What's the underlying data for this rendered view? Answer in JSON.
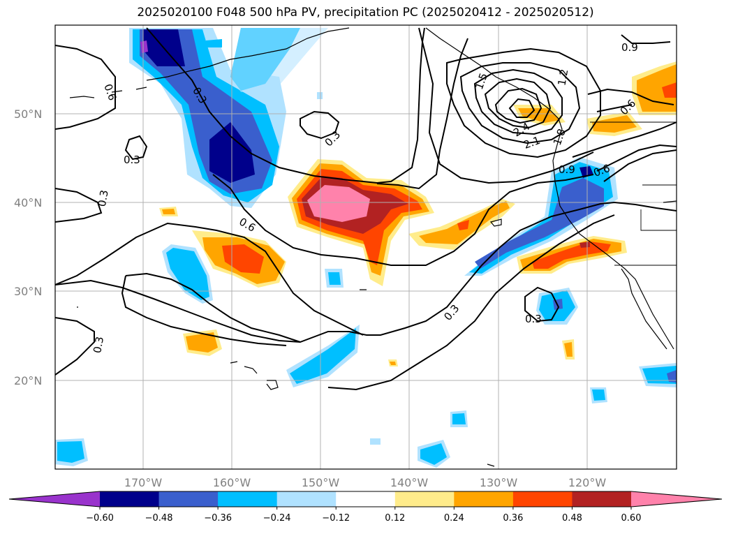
{
  "title": "2025020100 F048 500 hPa PV, precipitation PC (2025020412 - 2025020512)",
  "lat_labels": [
    "50°N",
    "40°N",
    "30°N",
    "20°N"
  ],
  "lon_labels": [
    "170°W",
    "160°W",
    "150°W",
    "140°W",
    "130°W",
    "120°W"
  ],
  "contour_labels": {
    "a": "0.3",
    "b": "0.3",
    "c": "0.3",
    "d": "0.3",
    "e": "0.3",
    "f": "0.3",
    "g": "0.3",
    "h": "0.6",
    "i": "0.6",
    "j": "0.6",
    "k": "0.6",
    "l": "0.9",
    "m": "0.9",
    "n": "1.2",
    "o": "1.5",
    "p": "1.8",
    "q": "2.1",
    "r": "2.4"
  },
  "colorbar": {
    "ticks": [
      "−0.60",
      "−0.48",
      "−0.36",
      "−0.24",
      "−0.12",
      "0.12",
      "0.24",
      "0.36",
      "0.48",
      "0.60"
    ],
    "colors": [
      "#9933cc",
      "#00008b",
      "#3a5fcd",
      "#00bfff",
      "#b0e2ff",
      "#ffffff",
      "#ffec8b",
      "#ffa500",
      "#ff4500",
      "#b22222",
      "#ff82ab"
    ]
  }
}
